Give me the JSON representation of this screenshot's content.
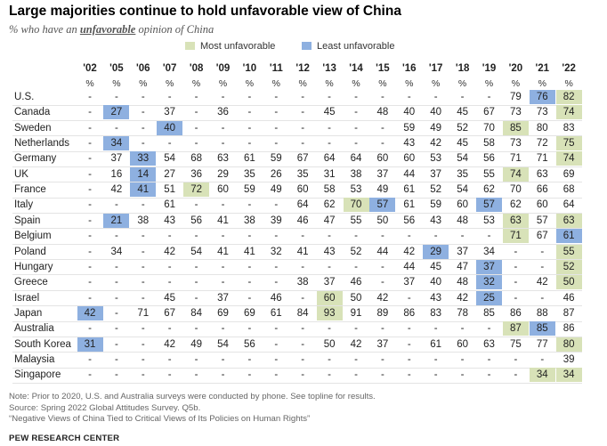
{
  "title": "Large majorities continue to hold unfavorable view of China",
  "subtitle_pre": "% who have an",
  "subtitle_emph": "unfavorable",
  "subtitle_post": "opinion of China",
  "legend": {
    "most": {
      "label": "Most unfavorable",
      "color": "#d8e2b8"
    },
    "least": {
      "label": "Least unfavorable",
      "color": "#8eb0e0"
    }
  },
  "notes": [
    "Note: Prior to 2020, U.S. and Australia surveys were conducted by phone. See topline for results.",
    "Source: Spring 2022 Global Attitudes Survey. Q5b.",
    "“Negative Views of China Tied to Critical Views of Its Policies on Human Rights”"
  ],
  "source_org": "PEW RESEARCH CENTER",
  "chart_data": {
    "type": "table",
    "title": "Large majorities continue to hold unfavorable view of China",
    "subtitle": "% who have an unfavorable opinion of China",
    "years": [
      "'02",
      "'05",
      "'06",
      "'07",
      "'08",
      "'09",
      "'10",
      "'11",
      "'12",
      "'13",
      "'14",
      "'15",
      "'16",
      "'17",
      "'18",
      "'19",
      "'20",
      "'21",
      "'22"
    ],
    "unit_row": [
      "%",
      "%",
      "%",
      "%",
      "%",
      "%",
      "%",
      "%",
      "%",
      "%",
      "%",
      "%",
      "%",
      "%",
      "%",
      "%",
      "%",
      "%",
      "%"
    ],
    "highlight_legend": {
      "M": "Most unfavorable",
      "L": "Least unfavorable"
    },
    "rows": [
      {
        "country": "U.S.",
        "values": [
          "-",
          "-",
          "-",
          "-",
          "-",
          "-",
          "-",
          "-",
          "-",
          "-",
          "-",
          "-",
          "-",
          "-",
          "-",
          "-",
          "79",
          "76",
          "82"
        ],
        "highlights": [
          "",
          "",
          "",
          "",
          "",
          "",
          "",
          "",
          "",
          "",
          "",
          "",
          "",
          "",
          "",
          "",
          "",
          "L",
          "M"
        ]
      },
      {
        "country": "Canada",
        "values": [
          "-",
          "27",
          "-",
          "37",
          "-",
          "36",
          "-",
          "-",
          "-",
          "45",
          "-",
          "48",
          "40",
          "40",
          "45",
          "67",
          "73",
          "73",
          "74"
        ],
        "highlights": [
          "",
          "L",
          "",
          "",
          "",
          "",
          "",
          "",
          "",
          "",
          "",
          "",
          "",
          "",
          "",
          "",
          "",
          "",
          "M"
        ]
      },
      {
        "country": "Sweden",
        "values": [
          "-",
          "-",
          "-",
          "40",
          "-",
          "-",
          "-",
          "-",
          "-",
          "-",
          "-",
          "-",
          "59",
          "49",
          "52",
          "70",
          "85",
          "80",
          "83"
        ],
        "highlights": [
          "",
          "",
          "",
          "L",
          "",
          "",
          "",
          "",
          "",
          "",
          "",
          "",
          "",
          "",
          "",
          "",
          "M",
          "",
          ""
        ]
      },
      {
        "country": "Netherlands",
        "values": [
          "-",
          "34",
          "-",
          "-",
          "-",
          "-",
          "-",
          "-",
          "-",
          "-",
          "-",
          "-",
          "43",
          "42",
          "45",
          "58",
          "73",
          "72",
          "75"
        ],
        "highlights": [
          "",
          "L",
          "",
          "",
          "",
          "",
          "",
          "",
          "",
          "",
          "",
          "",
          "",
          "",
          "",
          "",
          "",
          "",
          "M"
        ]
      },
      {
        "country": "Germany",
        "values": [
          "-",
          "37",
          "33",
          "54",
          "68",
          "63",
          "61",
          "59",
          "67",
          "64",
          "64",
          "60",
          "60",
          "53",
          "54",
          "56",
          "71",
          "71",
          "74"
        ],
        "highlights": [
          "",
          "",
          "L",
          "",
          "",
          "",
          "",
          "",
          "",
          "",
          "",
          "",
          "",
          "",
          "",
          "",
          "",
          "",
          "M"
        ]
      },
      {
        "country": "UK",
        "values": [
          "-",
          "16",
          "14",
          "27",
          "36",
          "29",
          "35",
          "26",
          "35",
          "31",
          "38",
          "37",
          "44",
          "37",
          "35",
          "55",
          "74",
          "63",
          "69"
        ],
        "highlights": [
          "",
          "",
          "L",
          "",
          "",
          "",
          "",
          "",
          "",
          "",
          "",
          "",
          "",
          "",
          "",
          "",
          "M",
          "",
          ""
        ]
      },
      {
        "country": "France",
        "values": [
          "-",
          "42",
          "41",
          "51",
          "72",
          "60",
          "59",
          "49",
          "60",
          "58",
          "53",
          "49",
          "61",
          "52",
          "54",
          "62",
          "70",
          "66",
          "68"
        ],
        "highlights": [
          "",
          "",
          "L",
          "",
          "M",
          "",
          "",
          "",
          "",
          "",
          "",
          "",
          "",
          "",
          "",
          "",
          "",
          "",
          ""
        ]
      },
      {
        "country": "Italy",
        "values": [
          "-",
          "-",
          "-",
          "61",
          "-",
          "-",
          "-",
          "-",
          "64",
          "62",
          "70",
          "57",
          "61",
          "59",
          "60",
          "57",
          "62",
          "60",
          "64"
        ],
        "highlights": [
          "",
          "",
          "",
          "",
          "",
          "",
          "",
          "",
          "",
          "",
          "M",
          "L",
          "",
          "",
          "",
          "L",
          "",
          "",
          ""
        ]
      },
      {
        "country": "Spain",
        "values": [
          "-",
          "21",
          "38",
          "43",
          "56",
          "41",
          "38",
          "39",
          "46",
          "47",
          "55",
          "50",
          "56",
          "43",
          "48",
          "53",
          "63",
          "57",
          "63"
        ],
        "highlights": [
          "",
          "L",
          "",
          "",
          "",
          "",
          "",
          "",
          "",
          "",
          "",
          "",
          "",
          "",
          "",
          "",
          "M",
          "",
          "M"
        ]
      },
      {
        "country": "Belgium",
        "values": [
          "-",
          "-",
          "-",
          "-",
          "-",
          "-",
          "-",
          "-",
          "-",
          "-",
          "-",
          "-",
          "-",
          "-",
          "-",
          "-",
          "71",
          "67",
          "61"
        ],
        "highlights": [
          "",
          "",
          "",
          "",
          "",
          "",
          "",
          "",
          "",
          "",
          "",
          "",
          "",
          "",
          "",
          "",
          "M",
          "",
          "L"
        ]
      },
      {
        "country": "Poland",
        "values": [
          "-",
          "34",
          "-",
          "42",
          "54",
          "41",
          "41",
          "32",
          "41",
          "43",
          "52",
          "44",
          "42",
          "29",
          "37",
          "34",
          "-",
          "-",
          "55"
        ],
        "highlights": [
          "",
          "",
          "",
          "",
          "",
          "",
          "",
          "",
          "",
          "",
          "",
          "",
          "",
          "L",
          "",
          "",
          "",
          "",
          "M"
        ]
      },
      {
        "country": "Hungary",
        "values": [
          "-",
          "-",
          "-",
          "-",
          "-",
          "-",
          "-",
          "-",
          "-",
          "-",
          "-",
          "-",
          "44",
          "45",
          "47",
          "37",
          "-",
          "-",
          "52"
        ],
        "highlights": [
          "",
          "",
          "",
          "",
          "",
          "",
          "",
          "",
          "",
          "",
          "",
          "",
          "",
          "",
          "",
          "L",
          "",
          "",
          "M"
        ]
      },
      {
        "country": "Greece",
        "values": [
          "-",
          "-",
          "-",
          "-",
          "-",
          "-",
          "-",
          "-",
          "38",
          "37",
          "46",
          "-",
          "37",
          "40",
          "48",
          "32",
          "-",
          "42",
          "50"
        ],
        "highlights": [
          "",
          "",
          "",
          "",
          "",
          "",
          "",
          "",
          "",
          "",
          "",
          "",
          "",
          "",
          "",
          "L",
          "",
          "",
          "M"
        ]
      },
      {
        "country": "Israel",
        "values": [
          "-",
          "-",
          "-",
          "45",
          "-",
          "37",
          "-",
          "46",
          "-",
          "60",
          "50",
          "42",
          "-",
          "43",
          "42",
          "25",
          "-",
          "-",
          "46"
        ],
        "highlights": [
          "",
          "",
          "",
          "",
          "",
          "",
          "",
          "",
          "",
          "M",
          "",
          "",
          "",
          "",
          "",
          "L",
          "",
          "",
          ""
        ]
      },
      {
        "country": "Japan",
        "values": [
          "42",
          "-",
          "71",
          "67",
          "84",
          "69",
          "69",
          "61",
          "84",
          "93",
          "91",
          "89",
          "86",
          "83",
          "78",
          "85",
          "86",
          "88",
          "87"
        ],
        "highlights": [
          "L",
          "",
          "",
          "",
          "",
          "",
          "",
          "",
          "",
          "M",
          "",
          "",
          "",
          "",
          "",
          "",
          "",
          "",
          ""
        ]
      },
      {
        "country": "Australia",
        "values": [
          "-",
          "-",
          "-",
          "-",
          "-",
          "-",
          "-",
          "-",
          "-",
          "-",
          "-",
          "-",
          "-",
          "-",
          "-",
          "-",
          "87",
          "85",
          "86"
        ],
        "highlights": [
          "",
          "",
          "",
          "",
          "",
          "",
          "",
          "",
          "",
          "",
          "",
          "",
          "",
          "",
          "",
          "",
          "M",
          "L",
          ""
        ]
      },
      {
        "country": "South Korea",
        "values": [
          "31",
          "-",
          "-",
          "42",
          "49",
          "54",
          "56",
          "-",
          "-",
          "50",
          "42",
          "37",
          "-",
          "61",
          "60",
          "63",
          "75",
          "77",
          "80"
        ],
        "highlights": [
          "L",
          "",
          "",
          "",
          "",
          "",
          "",
          "",
          "",
          "",
          "",
          "",
          "",
          "",
          "",
          "",
          "",
          "",
          "M"
        ]
      },
      {
        "country": "Malaysia",
        "values": [
          "-",
          "-",
          "-",
          "-",
          "-",
          "-",
          "-",
          "-",
          "-",
          "-",
          "-",
          "-",
          "-",
          "-",
          "-",
          "-",
          "-",
          "-",
          "39"
        ],
        "highlights": [
          "",
          "",
          "",
          "",
          "",
          "",
          "",
          "",
          "",
          "",
          "",
          "",
          "",
          "",
          "",
          "",
          "",
          "",
          ""
        ]
      },
      {
        "country": "Singapore",
        "values": [
          "-",
          "-",
          "-",
          "-",
          "-",
          "-",
          "-",
          "-",
          "-",
          "-",
          "-",
          "-",
          "-",
          "-",
          "-",
          "-",
          "-",
          "34",
          "34"
        ],
        "highlights": [
          "",
          "",
          "",
          "",
          "",
          "",
          "",
          "",
          "",
          "",
          "",
          "",
          "",
          "",
          "",
          "",
          "",
          "M",
          "M"
        ]
      }
    ]
  }
}
